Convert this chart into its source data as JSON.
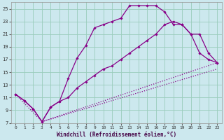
{
  "xlabel": "Windchill (Refroidissement éolien,°C)",
  "bg_color": "#cce8ee",
  "line_color": "#880088",
  "grid_color": "#99ccbb",
  "xlim": [
    -0.5,
    23.5
  ],
  "ylim": [
    7,
    26
  ],
  "xticks": [
    0,
    1,
    2,
    3,
    4,
    5,
    6,
    7,
    8,
    9,
    10,
    11,
    12,
    13,
    14,
    15,
    16,
    17,
    18,
    19,
    20,
    21,
    22,
    23
  ],
  "yticks": [
    7,
    9,
    11,
    13,
    15,
    17,
    19,
    21,
    23,
    25
  ],
  "line1_x": [
    0,
    1,
    2,
    3,
    4,
    5,
    6,
    7,
    8,
    9,
    10,
    11,
    12,
    13,
    14,
    15,
    16,
    17,
    18,
    19,
    20,
    21,
    22,
    23
  ],
  "line1_y": [
    11.5,
    10.5,
    9.2,
    7.2,
    9.5,
    10.4,
    14.0,
    17.2,
    19.2,
    22.0,
    22.5,
    23.0,
    23.5,
    25.5,
    25.5,
    25.5,
    25.5,
    24.5,
    22.5,
    22.5,
    21.0,
    18.0,
    17.0,
    16.5
  ],
  "line2_x": [
    0,
    1,
    2,
    3,
    4,
    5,
    6,
    7,
    8,
    9,
    10,
    11,
    12,
    13,
    14,
    15,
    16,
    17,
    18,
    19,
    20,
    21,
    22,
    23
  ],
  "line2_y": [
    11.5,
    10.5,
    9.2,
    7.2,
    9.5,
    10.4,
    11.0,
    12.5,
    13.5,
    14.5,
    15.5,
    16.0,
    17.0,
    18.0,
    19.0,
    20.0,
    21.0,
    22.5,
    23.0,
    22.5,
    21.0,
    21.0,
    18.0,
    16.5
  ],
  "line3_x": [
    0,
    3,
    23
  ],
  "line3_y": [
    11.5,
    7.2,
    16.5
  ],
  "line4_x": [
    3,
    23
  ],
  "line4_y": [
    7.2,
    15.5
  ]
}
